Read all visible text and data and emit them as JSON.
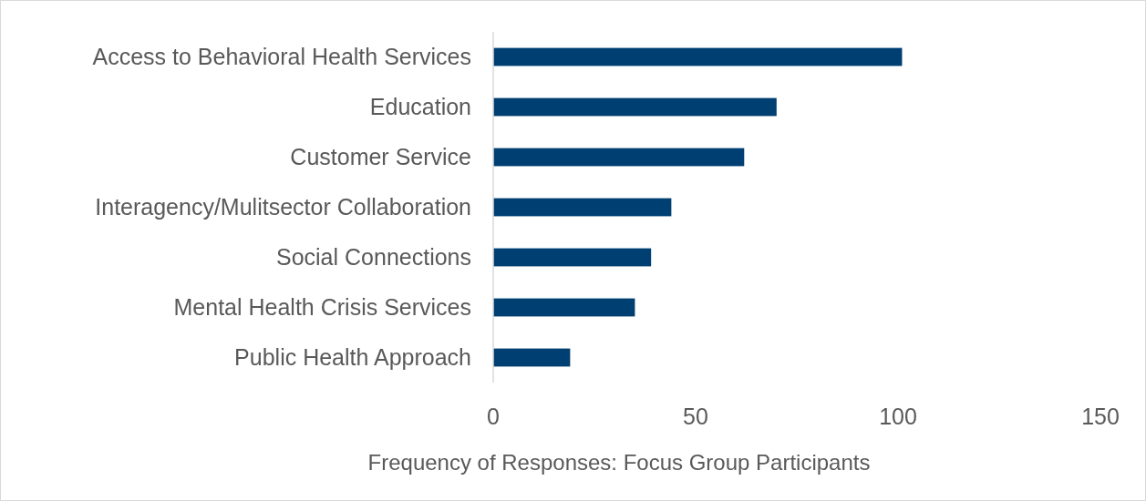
{
  "chart_data": {
    "type": "bar",
    "orientation": "horizontal",
    "xlabel": "Frequency of Responses: Focus Group Participants",
    "categories": [
      "Access to Behavioral Health Services",
      "Education",
      "Customer Service",
      "Interagency/Mulitsector Collaboration",
      "Social Connections",
      "Mental Health Crisis Services",
      "Public Health Approach"
    ],
    "values": [
      101,
      70,
      62,
      44,
      39,
      35,
      19
    ],
    "color": "#003f72",
    "xlim": [
      0,
      150
    ],
    "xticks": [
      0,
      50,
      100,
      150
    ],
    "grid": false
  }
}
